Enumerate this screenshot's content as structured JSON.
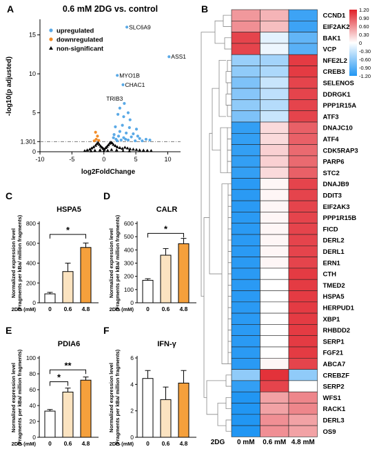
{
  "panels": {
    "A": "A",
    "B": "B",
    "C": "C",
    "D": "D",
    "E": "E",
    "F": "F"
  },
  "stats": {
    "star": "*",
    "double_star": "**"
  },
  "chart_data": [
    {
      "panel": "A",
      "type": "scatter",
      "title": "0.6 mM 2DG vs. control",
      "xlabel": "log2FoldChange",
      "ylabel": "-log10(p adjusted)",
      "xlim": [
        -10,
        12
      ],
      "ylim": [
        0,
        17
      ],
      "xticks": [
        "-10",
        "-5",
        "0",
        "5",
        "10"
      ],
      "yticks": [
        {
          "value": 0,
          "label": "0"
        },
        {
          "value": 1.301,
          "label": "1.301"
        },
        {
          "value": 5,
          "label": "5"
        },
        {
          "value": 10,
          "label": "10"
        },
        {
          "value": 15,
          "label": "15"
        }
      ],
      "threshold": 1.301,
      "legend": {
        "placement": "top-left",
        "entries": [
          {
            "label": "upregulated",
            "color": "#5aa9e6",
            "marker": "circle"
          },
          {
            "label": "downregulated",
            "color": "#f28c28",
            "marker": "circle"
          },
          {
            "label": "non-significant",
            "color": "#000000",
            "marker": "triangle"
          }
        ]
      },
      "annotations": [
        {
          "label": "SLC6A9",
          "x": 3.6,
          "y": 16.0
        },
        {
          "label": "ASS1",
          "x": 10.2,
          "y": 12.2
        },
        {
          "label": "MYO1B",
          "x": 2.1,
          "y": 9.8
        },
        {
          "label": "CHAC1",
          "x": 3.0,
          "y": 8.6
        },
        {
          "label": "TRIB3",
          "x": 3.2,
          "y": 6.2
        }
      ],
      "series": [
        {
          "name": "upregulated",
          "points": [
            [
              3.6,
              16.0
            ],
            [
              10.2,
              12.2
            ],
            [
              2.1,
              9.8
            ],
            [
              3.0,
              8.6
            ],
            [
              3.2,
              6.2
            ],
            [
              2.5,
              5.6
            ],
            [
              3.1,
              4.5
            ],
            [
              4.1,
              4.1
            ],
            [
              2.2,
              4.8
            ],
            [
              2.9,
              3.4
            ],
            [
              4.0,
              3.1
            ],
            [
              5.1,
              2.9
            ],
            [
              1.8,
              3.2
            ],
            [
              2.5,
              2.6
            ],
            [
              3.5,
              2.4
            ],
            [
              4.6,
              2.3
            ],
            [
              1.6,
              2.2
            ],
            [
              2.3,
              2.0
            ],
            [
              3.1,
              1.8
            ],
            [
              4.3,
              1.9
            ],
            [
              5.6,
              1.7
            ],
            [
              6.6,
              1.6
            ],
            [
              1.9,
              1.6
            ],
            [
              2.7,
              1.5
            ],
            [
              3.8,
              1.5
            ],
            [
              4.9,
              1.4
            ],
            [
              6.0,
              1.4
            ],
            [
              7.2,
              1.5
            ],
            [
              1.5,
              1.8
            ],
            [
              2.1,
              1.4
            ],
            [
              3.4,
              1.6
            ],
            [
              5.3,
              2.0
            ],
            [
              3.8,
              5.0
            ]
          ]
        },
        {
          "name": "downregulated",
          "points": [
            [
              -1.3,
              2.5
            ],
            [
              -1.0,
              2.0
            ],
            [
              -1.2,
              1.6
            ],
            [
              -0.8,
              1.45
            ],
            [
              -1.5,
              1.4
            ]
          ]
        },
        {
          "name": "non-significant",
          "points": [
            [
              -3.0,
              0.1
            ],
            [
              -2.6,
              0.2
            ],
            [
              -2.2,
              0.3
            ],
            [
              -1.9,
              0.45
            ],
            [
              -1.6,
              0.6
            ],
            [
              -1.3,
              0.8
            ],
            [
              -1.1,
              1.0
            ],
            [
              -0.9,
              1.15
            ],
            [
              -0.7,
              0.9
            ],
            [
              -0.5,
              0.7
            ],
            [
              -0.3,
              0.55
            ],
            [
              -0.1,
              0.4
            ],
            [
              0.1,
              0.3
            ],
            [
              0.3,
              0.5
            ],
            [
              0.5,
              0.65
            ],
            [
              0.7,
              0.85
            ],
            [
              0.9,
              1.05
            ],
            [
              1.1,
              1.2
            ],
            [
              1.3,
              1.1
            ],
            [
              1.5,
              0.9
            ],
            [
              1.8,
              0.75
            ],
            [
              2.1,
              0.6
            ],
            [
              2.5,
              0.5
            ],
            [
              2.9,
              0.4
            ],
            [
              3.3,
              0.55
            ],
            [
              3.7,
              0.45
            ],
            [
              4.1,
              0.35
            ],
            [
              4.6,
              0.3
            ],
            [
              5.1,
              0.25
            ],
            [
              5.6,
              0.2
            ],
            [
              6.2,
              0.18
            ],
            [
              6.8,
              0.15
            ],
            [
              7.4,
              0.12
            ],
            [
              -0.6,
              0.2
            ],
            [
              0.0,
              0.1
            ],
            [
              0.6,
              0.15
            ],
            [
              1.2,
              0.25
            ],
            [
              2.0,
              0.2
            ],
            [
              -1.4,
              0.15
            ],
            [
              3.0,
              0.1
            ],
            [
              4.0,
              0.08
            ],
            [
              -2.0,
              0.08
            ]
          ]
        }
      ]
    },
    {
      "panel": "B",
      "type": "heatmap",
      "xlabel": "2DG",
      "columns": [
        "0 mM",
        "0.6 mM",
        "4.8 mM"
      ],
      "rows": [
        "CCND1",
        "EIF2AK2",
        "BAK1",
        "VCP",
        "NFE2L2",
        "CREB3",
        "SELENOS",
        "DDRGK1",
        "PPP1R15A",
        "ATF3",
        "DNAJC10",
        "ATF4",
        "CDK5RAP3",
        "PARP6",
        "STC2",
        "DNAJB9",
        "DDIT3",
        "EIF2AK3",
        "PPP1R15B",
        "FICD",
        "DERL2",
        "DERL1",
        "ERN1",
        "CTH",
        "TMED2",
        "HSPA5",
        "HERPUD1",
        "XBP1",
        "RHBDD2",
        "SERP1",
        "FGF21",
        "ABCA7",
        "CREBZF",
        "SERP2",
        "WFS1",
        "RACK1",
        "DERL3",
        "OS9"
      ],
      "values": [
        [
          0.55,
          0.4,
          -1.05
        ],
        [
          0.6,
          0.35,
          -1.05
        ],
        [
          1.0,
          -0.15,
          -0.85
        ],
        [
          1.0,
          -0.1,
          -0.9
        ],
        [
          -0.55,
          -0.5,
          1.05
        ],
        [
          -0.6,
          -0.45,
          1.05
        ],
        [
          -0.7,
          -0.3,
          1.0
        ],
        [
          -0.65,
          -0.35,
          1.0
        ],
        [
          -0.6,
          -0.4,
          1.0
        ],
        [
          -0.7,
          -0.3,
          1.0
        ],
        [
          -1.1,
          0.2,
          0.85
        ],
        [
          -1.1,
          0.2,
          0.85
        ],
        [
          -1.1,
          0.25,
          0.8
        ],
        [
          -1.1,
          0.25,
          0.8
        ],
        [
          -1.1,
          0.2,
          0.85
        ],
        [
          -1.15,
          0.05,
          1.0
        ],
        [
          -1.15,
          0.05,
          1.0
        ],
        [
          -1.15,
          0.05,
          1.0
        ],
        [
          -1.15,
          0.05,
          1.0
        ],
        [
          -1.15,
          0.05,
          1.0
        ],
        [
          -1.15,
          0.05,
          1.0
        ],
        [
          -1.15,
          0.05,
          1.0
        ],
        [
          -1.15,
          0.05,
          1.0
        ],
        [
          -1.15,
          0.0,
          1.05
        ],
        [
          -1.15,
          0.0,
          1.05
        ],
        [
          -1.15,
          0.0,
          1.05
        ],
        [
          -1.15,
          0.0,
          1.05
        ],
        [
          -1.15,
          0.0,
          1.05
        ],
        [
          -1.15,
          0.0,
          1.05
        ],
        [
          -1.15,
          0.0,
          1.05
        ],
        [
          -1.15,
          0.0,
          1.05
        ],
        [
          -1.15,
          0.05,
          1.0
        ],
        [
          -0.6,
          1.1,
          -0.6
        ],
        [
          -1.1,
          1.0,
          0.0
        ],
        [
          -1.2,
          0.5,
          0.65
        ],
        [
          -1.2,
          0.5,
          0.65
        ],
        [
          -1.2,
          0.6,
          0.5
        ],
        [
          -1.2,
          0.6,
          0.5
        ]
      ],
      "colorbar": {
        "ticks": [
          {
            "value": 1.2,
            "label": "1.20"
          },
          {
            "value": 0.9,
            "label": "0.90"
          },
          {
            "value": 0.6,
            "label": "0.60"
          },
          {
            "value": 0.3,
            "label": "0.30"
          },
          {
            "value": 0.0,
            "label": "0"
          },
          {
            "value": -0.3,
            "label": "-0.30"
          },
          {
            "value": -0.6,
            "label": "-0.60"
          },
          {
            "value": -0.9,
            "label": "-0.90"
          },
          {
            "value": -1.2,
            "label": "-1.20"
          }
        ],
        "min": -1.2,
        "max": 1.2,
        "low_color": "#2196f3",
        "mid_color": "#ffffff",
        "high_color": "#e01f28"
      }
    },
    {
      "panel": "C",
      "type": "bar",
      "title": "HSPA5",
      "ylabel_lines": [
        "Normalized expression level",
        "(Fragments per kBa/ million fragments)"
      ],
      "xlabel": "2DG (mM)",
      "categories": [
        "0",
        "0.6",
        "4.8"
      ],
      "values": [
        90,
        315,
        558
      ],
      "errors": [
        15,
        85,
        45
      ],
      "ylim": [
        0,
        800
      ],
      "yticks": [
        0,
        200,
        400,
        600,
        800
      ],
      "colors": [
        "#ffffff",
        "#fbe3c0",
        "#f5a03c"
      ],
      "significance": [
        {
          "from": 0,
          "to": 2,
          "label": "*",
          "y": 690
        }
      ]
    },
    {
      "panel": "D",
      "type": "bar",
      "title": "CALR",
      "ylabel_lines": [
        "Normalized expression level",
        "(Fragments per kBa/ million fragments)"
      ],
      "xlabel": "2DG (mM)",
      "categories": [
        "0",
        "0.6",
        "4.8"
      ],
      "values": [
        170,
        360,
        447
      ],
      "errors": [
        12,
        50,
        40
      ],
      "ylim": [
        0,
        600
      ],
      "yticks": [
        0,
        100,
        200,
        300,
        400,
        500,
        600
      ],
      "colors": [
        "#ffffff",
        "#fbe3c0",
        "#f5a03c"
      ],
      "significance": [
        {
          "from": 0,
          "to": 2,
          "label": "*",
          "y": 525
        }
      ]
    },
    {
      "panel": "E",
      "type": "bar",
      "title": "PDIA6",
      "ylabel_lines": [
        "Normalized expression level",
        "(Fragments per kBa/ million fragments)"
      ],
      "xlabel": "2DG (mM)",
      "categories": [
        "0",
        "0.6",
        "4.8"
      ],
      "values": [
        33,
        57,
        72
      ],
      "errors": [
        2,
        5,
        4
      ],
      "ylim": [
        0,
        100
      ],
      "yticks": [
        0,
        20,
        40,
        60,
        80,
        100
      ],
      "colors": [
        "#ffffff",
        "#fbe3c0",
        "#f5a03c"
      ],
      "significance": [
        {
          "from": 0,
          "to": 1,
          "label": "*",
          "y": 70
        },
        {
          "from": 0,
          "to": 2,
          "label": "**",
          "y": 85
        }
      ]
    },
    {
      "panel": "F",
      "type": "bar",
      "title": "IFN-γ",
      "ylabel_lines": [
        "Normalized expression level",
        "(Fragments per kBa/ million fragments)"
      ],
      "xlabel": "2DG (mM)",
      "categories": [
        "0",
        "0.6",
        "4.8"
      ],
      "values": [
        4.45,
        2.85,
        4.1
      ],
      "errors": [
        0.6,
        0.95,
        0.95
      ],
      "ylim": [
        0,
        6
      ],
      "yticks": [
        0,
        2,
        4,
        6
      ],
      "colors": [
        "#ffffff",
        "#fbe3c0",
        "#f5a03c"
      ],
      "significance": []
    }
  ]
}
